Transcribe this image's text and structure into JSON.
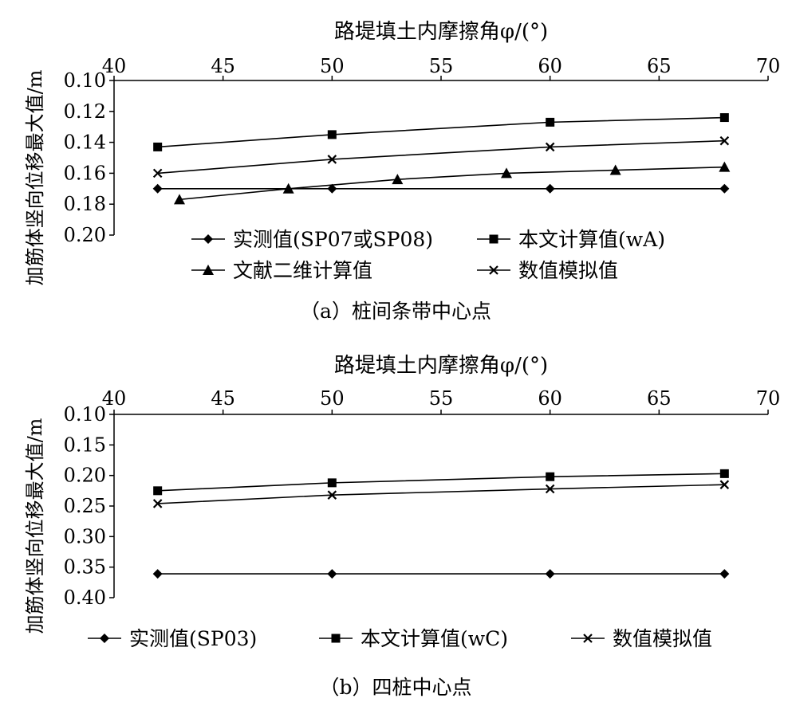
{
  "charts": [
    {
      "id": "a",
      "caption": "（a）桩间条带中心点",
      "chart_data": {
        "type": "line",
        "xlabel": "路堤填土内摩擦角φ/(°)",
        "ylabel": "加筋体竖向位移最大值/m",
        "xlim": [
          40,
          70
        ],
        "ylim": [
          0.1,
          0.2
        ],
        "y_inverted": true,
        "x_axis_position": "top",
        "xticks": [
          "40",
          "45",
          "50",
          "55",
          "60",
          "65",
          "70"
        ],
        "yticks": [
          "0.10",
          "0.12",
          "0.14",
          "0.16",
          "0.18",
          "0.20"
        ],
        "legend_position": "bottom-inside",
        "series": [
          {
            "name": "实测值(SP07或SP08)",
            "marker": "diamond",
            "x": [
              42,
              50,
              60,
              68
            ],
            "y": [
              0.17,
              0.17,
              0.17,
              0.17
            ]
          },
          {
            "name": "本文计算值(wA)",
            "marker": "square",
            "x": [
              42,
              50,
              60,
              68
            ],
            "y": [
              0.143,
              0.135,
              0.127,
              0.124
            ]
          },
          {
            "name": "文献二维计算值",
            "marker": "triangle",
            "x": [
              43,
              48,
              53,
              58,
              63,
              68
            ],
            "y": [
              0.177,
              0.17,
              0.164,
              0.16,
              0.158,
              0.156
            ]
          },
          {
            "name": "数值模拟值",
            "marker": "x",
            "x": [
              42,
              50,
              60,
              68
            ],
            "y": [
              0.16,
              0.151,
              0.143,
              0.139
            ]
          }
        ]
      }
    },
    {
      "id": "b",
      "caption": "（b）四桩中心点",
      "chart_data": {
        "type": "line",
        "xlabel": "路堤填土内摩擦角φ/(°)",
        "ylabel": "加筋体竖向位移最大值/m",
        "xlim": [
          40,
          70
        ],
        "ylim": [
          0.1,
          0.4
        ],
        "y_inverted": true,
        "x_axis_position": "top",
        "xticks": [
          "40",
          "45",
          "50",
          "55",
          "60",
          "65",
          "70"
        ],
        "yticks": [
          "0.10",
          "0.15",
          "0.20",
          "0.25",
          "0.30",
          "0.35",
          "0.40"
        ],
        "legend_position": "bottom",
        "series": [
          {
            "name": "实测值(SP03)",
            "marker": "diamond",
            "x": [
              42,
              50,
              60,
              68
            ],
            "y": [
              0.361,
              0.361,
              0.361,
              0.361
            ]
          },
          {
            "name": "本文计算值(wC)",
            "marker": "square",
            "x": [
              42,
              50,
              60,
              68
            ],
            "y": [
              0.225,
              0.212,
              0.202,
              0.197
            ]
          },
          {
            "name": "数值模拟值",
            "marker": "x",
            "x": [
              42,
              50,
              60,
              68
            ],
            "y": [
              0.246,
              0.232,
              0.222,
              0.215
            ]
          }
        ]
      }
    }
  ]
}
